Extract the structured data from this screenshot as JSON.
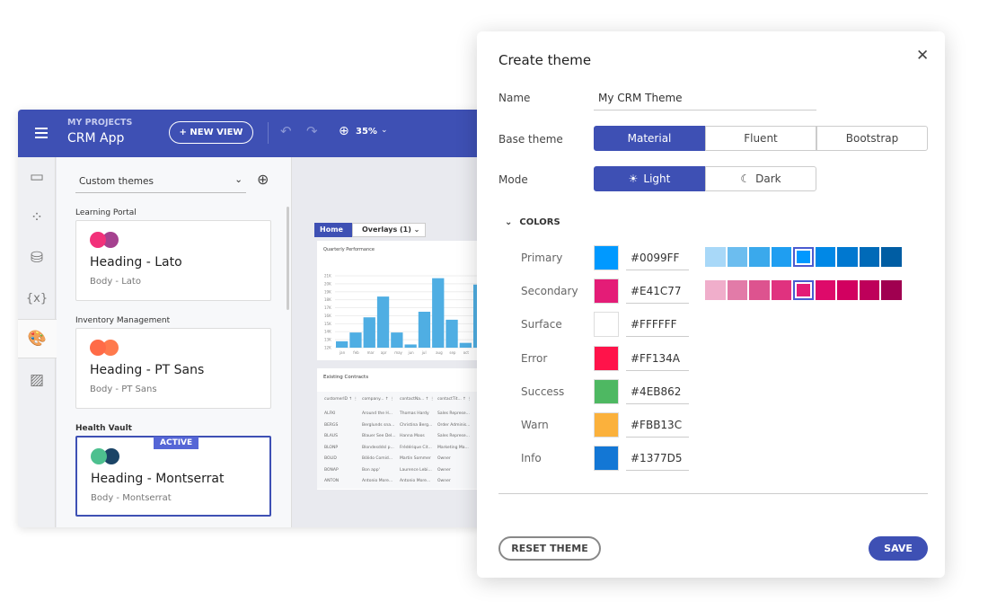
{
  "app": {
    "project_label": "MY PROJECTS",
    "app_name": "CRM App",
    "new_view_label": "+ NEW VIEW",
    "zoom": "35%",
    "header_color": "#3E50B4"
  },
  "panel": {
    "dropdown_value": "Custom themes",
    "themes": [
      {
        "group": "Learning Portal",
        "heading": "Heading - Lato",
        "body": "Body - Lato",
        "colors": [
          "#F2317A",
          "#A5418F"
        ],
        "active": false
      },
      {
        "group": "Inventory Management",
        "heading": "Heading - PT Sans",
        "body": "Body - PT Sans",
        "colors": [
          "#FF6B47",
          "#FF7A4D"
        ],
        "active": false
      },
      {
        "group": "Health Vault",
        "heading": "Heading - Montserrat",
        "body": "Body - Montserrat",
        "colors": [
          "#4DC08F",
          "#1B4466"
        ],
        "active": true
      }
    ],
    "active_badge": "ACTIVE"
  },
  "canvas": {
    "breadcrumb_home": "Home",
    "breadcrumb_overlays": "Overlays (1)",
    "table_title": "Existing Contracts",
    "table_headers": [
      "customerID",
      "company...",
      "contactNa...",
      "contactTit..."
    ],
    "table_rows": [
      [
        "ALFKI",
        "Around the H...",
        "Thomas Hardy",
        "Sales Represe..."
      ],
      [
        "BERGS",
        "Berglunds sna...",
        "Christina Berg...",
        "Order Adminis..."
      ],
      [
        "BLAUS",
        "Blauer See Del...",
        "Hanna Moos",
        "Sales Represe..."
      ],
      [
        "BLONP",
        "Blondesddsl p...",
        "Frédérique Cit...",
        "Marketing Ma..."
      ],
      [
        "BOLID",
        "Bólido Comid...",
        "Martin Sommer",
        "Owner"
      ],
      [
        "BONAP",
        "Bon app'",
        "Laurence Lebi...",
        "Owner"
      ],
      [
        "ANTON",
        "Antonio More...",
        "Antonio More...",
        "Owner"
      ]
    ]
  },
  "chart_data": {
    "type": "bar",
    "title": "Quarterly Performance",
    "categories": [
      "jan",
      "feb",
      "mar",
      "apr",
      "may",
      "jun",
      "jul",
      "aug",
      "sep",
      "oct",
      "nov"
    ],
    "values": [
      12.8,
      13.9,
      15.8,
      18.4,
      13.9,
      12.4,
      16.5,
      20.7,
      15.5,
      12.6,
      19.9
    ],
    "yticks": [
      "12K",
      "13K",
      "14K",
      "15K",
      "16K",
      "17K",
      "18K",
      "19K",
      "20K",
      "21K"
    ],
    "ylim": [
      12,
      21
    ],
    "color": "#4FAEE3",
    "grid": true
  },
  "dialog": {
    "title": "Create theme",
    "name_label": "Name",
    "name_value": "My CRM Theme",
    "base_label": "Base theme",
    "base_options": [
      "Material",
      "Fluent",
      "Bootstrap"
    ],
    "base_selected": "Material",
    "mode_label": "Mode",
    "mode_options": [
      "Light",
      "Dark"
    ],
    "mode_selected": "Light",
    "colors_label": "COLORS",
    "colors": [
      {
        "name": "Primary",
        "hex": "#0099FF",
        "palette": [
          "#A8D8F8",
          "#6CBDEF",
          "#3AA9EC",
          "#1F9EF1",
          "#0099FF",
          "#0088E6",
          "#0078D0",
          "#006AB8",
          "#005DA3"
        ],
        "selected": 4
      },
      {
        "name": "Secondary",
        "hex": "#E41C77",
        "palette": [
          "#F0AECB",
          "#E27BA8",
          "#DD538F",
          "#E0327F",
          "#E41C77",
          "#DE0A6A",
          "#D20060",
          "#BE005A",
          "#A00050"
        ],
        "selected": 4
      },
      {
        "name": "Surface",
        "hex": "#FFFFFF"
      },
      {
        "name": "Error",
        "hex": "#FF134A"
      },
      {
        "name": "Success",
        "hex": "#4EB862"
      },
      {
        "name": "Warn",
        "hex": "#FBB13C"
      },
      {
        "name": "Info",
        "hex": "#1377D5"
      }
    ],
    "reset_label": "RESET THEME",
    "save_label": "SAVE",
    "accent": "#3E50B4"
  }
}
